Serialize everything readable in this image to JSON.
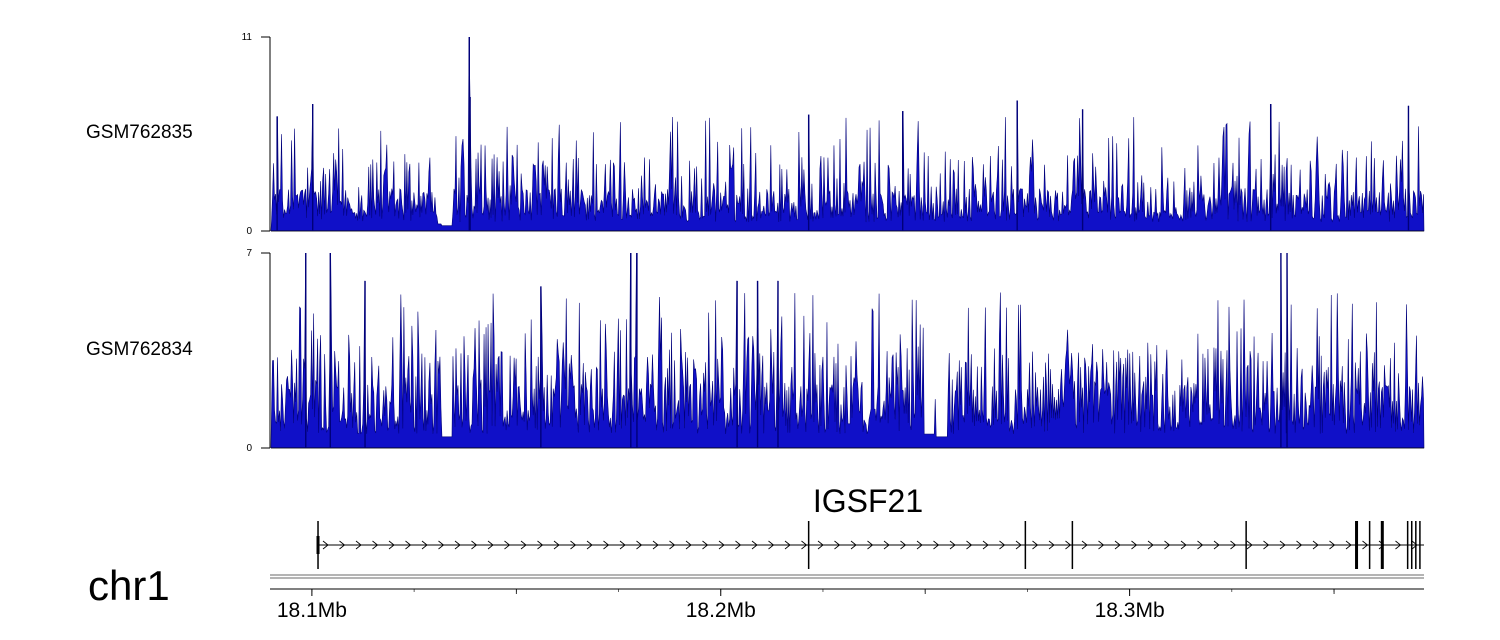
{
  "chart_data": {
    "type": "area",
    "title": "",
    "chromosome": "chr1",
    "x_range_mb": [
      18.09,
      18.372
    ],
    "x_ticks": [
      {
        "value": 18.1,
        "label": "18.1Mb"
      },
      {
        "value": 18.2,
        "label": "18.2Mb"
      },
      {
        "value": 18.3,
        "label": "18.3Mb"
      }
    ],
    "x_minor_ticks": [
      18.15,
      18.25,
      18.35
    ],
    "fill_color": "#1010c8",
    "line_color": "#00007a",
    "tracks": [
      {
        "name": "GSM762835",
        "ylim": [
          0,
          11
        ],
        "y_max_label": "11",
        "y_min_label": "0",
        "peaks": [
          {
            "x": 18.1385,
            "y": 11
          },
          {
            "x": 18.1387,
            "y": 7.6
          },
          {
            "x": 18.1002,
            "y": 7.2
          },
          {
            "x": 18.0915,
            "y": 6.5
          },
          {
            "x": 18.2445,
            "y": 6.8
          },
          {
            "x": 18.2725,
            "y": 7.4
          },
          {
            "x": 18.2215,
            "y": 6.6
          },
          {
            "x": 18.2885,
            "y": 6.9
          },
          {
            "x": 18.3345,
            "y": 7.2
          },
          {
            "x": 18.3682,
            "y": 7.1
          }
        ],
        "gaps": [
          {
            "x": 18.132,
            "y": 0.4
          },
          {
            "x": 18.133,
            "y": 0.3
          }
        ]
      },
      {
        "name": "GSM762834",
        "ylim": [
          0,
          7
        ],
        "y_max_label": "7",
        "y_min_label": "0",
        "peaks": [
          {
            "x": 18.0985,
            "y": 7
          },
          {
            "x": 18.1045,
            "y": 7
          },
          {
            "x": 18.178,
            "y": 7
          },
          {
            "x": 18.1795,
            "y": 7
          },
          {
            "x": 18.337,
            "y": 7
          },
          {
            "x": 18.3385,
            "y": 7
          },
          {
            "x": 18.204,
            "y": 6
          },
          {
            "x": 18.214,
            "y": 6
          },
          {
            "x": 18.209,
            "y": 6
          },
          {
            "x": 18.156,
            "y": 5.8
          },
          {
            "x": 18.113,
            "y": 6
          }
        ],
        "gaps": [
          {
            "x": 18.133,
            "y": 0.4
          },
          {
            "x": 18.251,
            "y": 0.5
          },
          {
            "x": 18.254,
            "y": 0.4
          }
        ]
      }
    ],
    "gene": {
      "name": "IGSF21",
      "start": 18.1015,
      "end": 18.372,
      "strand": "+",
      "exons": [
        18.1015,
        18.2215,
        18.2745,
        18.286,
        18.3285,
        18.3555,
        18.3587,
        18.3618,
        18.368,
        18.369,
        18.37,
        18.371
      ]
    }
  }
}
